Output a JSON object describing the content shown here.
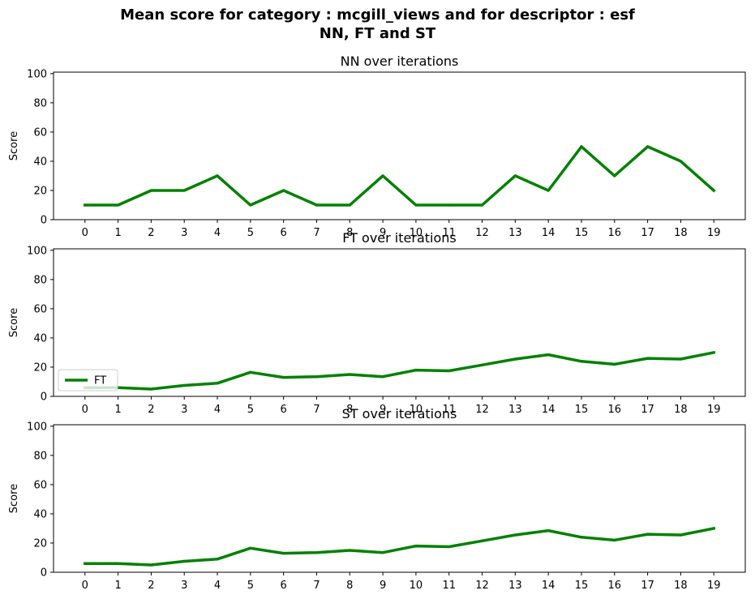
{
  "figure": {
    "title_line1": "Mean score for category : mcgill_views and for descriptor : esf",
    "title_line2": "NN, FT and ST",
    "line_color": "#008000"
  },
  "chart_data": [
    {
      "type": "line",
      "title": "NN over iterations",
      "xlabel": "",
      "ylabel": "Score",
      "x": [
        0,
        1,
        2,
        3,
        4,
        5,
        6,
        7,
        8,
        9,
        10,
        11,
        12,
        13,
        14,
        15,
        16,
        17,
        18,
        19
      ],
      "xticks": [
        "0",
        "1",
        "2",
        "3",
        "4",
        "5",
        "6",
        "7",
        "8",
        "9",
        "10",
        "11",
        "12",
        "13",
        "14",
        "15",
        "16",
        "17",
        "18",
        "19"
      ],
      "yticks": [
        "0",
        "20",
        "40",
        "60",
        "80",
        "100"
      ],
      "ylim": [
        0,
        101
      ],
      "xlim": [
        -0.95,
        19.95
      ],
      "grid": false,
      "legend": null,
      "series": [
        {
          "name": "NN",
          "values": [
            10,
            10,
            20,
            20,
            30,
            10,
            20,
            10,
            10,
            30,
            10,
            10,
            10,
            30,
            20,
            50,
            30,
            50,
            40,
            20
          ]
        }
      ]
    },
    {
      "type": "line",
      "title": "FT over iterations",
      "xlabel": "",
      "ylabel": "Score",
      "x": [
        0,
        1,
        2,
        3,
        4,
        5,
        6,
        7,
        8,
        9,
        10,
        11,
        12,
        13,
        14,
        15,
        16,
        17,
        18,
        19
      ],
      "xticks": [
        "0",
        "1",
        "2",
        "3",
        "4",
        "5",
        "6",
        "7",
        "8",
        "9",
        "10",
        "11",
        "12",
        "13",
        "14",
        "15",
        "16",
        "17",
        "18",
        "19"
      ],
      "yticks": [
        "0",
        "20",
        "40",
        "60",
        "80",
        "100"
      ],
      "ylim": [
        0,
        101
      ],
      "xlim": [
        -0.95,
        19.95
      ],
      "grid": false,
      "legend": "lower-left",
      "series": [
        {
          "name": "FT",
          "values": [
            6,
            6,
            5,
            7.5,
            9,
            16.5,
            13,
            13.5,
            15,
            13.5,
            18,
            17.5,
            21.5,
            25.5,
            28.5,
            24,
            22,
            26,
            25.5,
            30
          ]
        }
      ]
    },
    {
      "type": "line",
      "title": "ST over iterations",
      "xlabel": "",
      "ylabel": "Score",
      "x": [
        0,
        1,
        2,
        3,
        4,
        5,
        6,
        7,
        8,
        9,
        10,
        11,
        12,
        13,
        14,
        15,
        16,
        17,
        18,
        19
      ],
      "xticks": [
        "0",
        "1",
        "2",
        "3",
        "4",
        "5",
        "6",
        "7",
        "8",
        "9",
        "10",
        "11",
        "12",
        "13",
        "14",
        "15",
        "16",
        "17",
        "18",
        "19"
      ],
      "yticks": [
        "0",
        "20",
        "40",
        "60",
        "80",
        "100"
      ],
      "ylim": [
        0,
        101
      ],
      "xlim": [
        -0.95,
        19.95
      ],
      "grid": false,
      "legend": null,
      "series": [
        {
          "name": "ST",
          "values": [
            6,
            6,
            5,
            7.5,
            9,
            16.5,
            13,
            13.5,
            15,
            13.5,
            18,
            17.5,
            21.5,
            25.5,
            28.5,
            24,
            22,
            26,
            25.5,
            30
          ]
        }
      ]
    }
  ]
}
